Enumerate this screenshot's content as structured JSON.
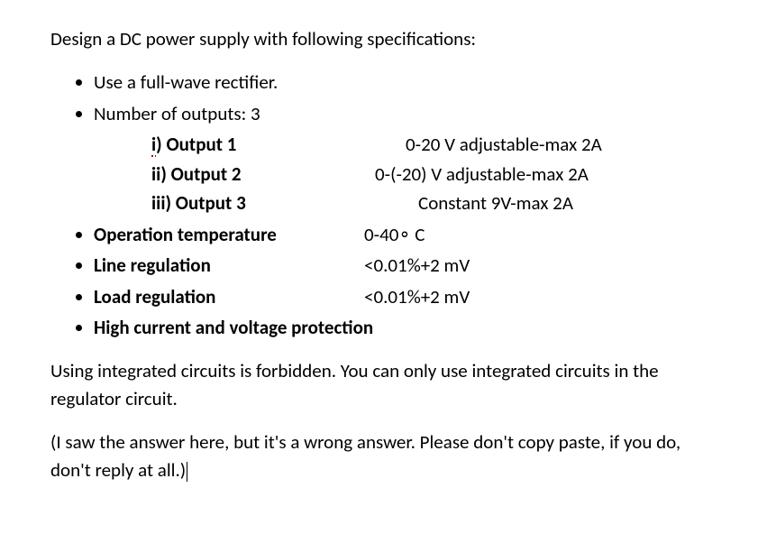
{
  "intro": "Design a DC power supply with following specifications:",
  "bullets": {
    "b1": "Use a full-wave rectifier.",
    "b2": "Number of outputs: 3"
  },
  "outputs": {
    "o1": {
      "label_prefix": "i",
      "label_rest": ") Output 1",
      "detail": "0-20 V adjustable-max 2A"
    },
    "o2": {
      "label": "ii) Output 2",
      "detail": "0-(-20) V adjustable-max 2A"
    },
    "o3": {
      "label": "iii) Output 3",
      "detail": "Constant 9V-max 2A"
    }
  },
  "specs": {
    "s1": {
      "label": "Operation temperature",
      "value": "0-40∘ C"
    },
    "s2": {
      "label": "Line regulation",
      "value": "<0.01%+2 mV"
    },
    "s3": {
      "label": "Load regulation",
      "value": "<0.01%+2 mV"
    },
    "s4": {
      "label": "High current and voltage protection"
    }
  },
  "note1": "Using integrated circuits is forbidden. You can only use integrated circuits in the regulator circuit.",
  "note2": "(I saw the answer here, but it's a wrong answer. Please don't copy paste, if you do, don't reply at all.)"
}
